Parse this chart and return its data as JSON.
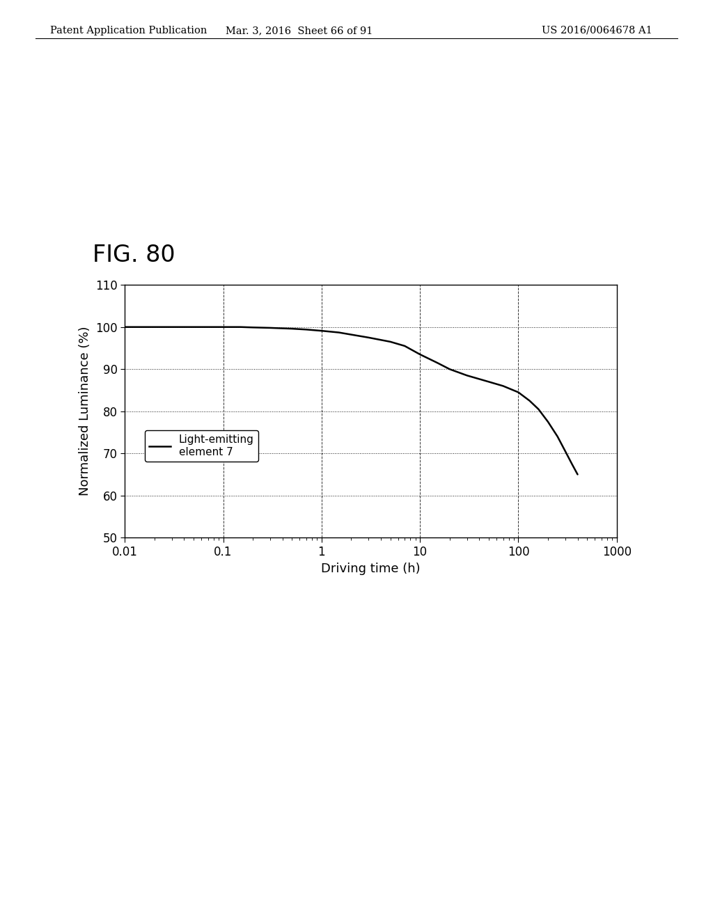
{
  "title_fig": "FIG. 80",
  "xlabel": "Driving time (h)",
  "ylabel": "Normalized Luminance (%)",
  "header_left": "Patent Application Publication",
  "header_mid": "Mar. 3, 2016  Sheet 66 of 91",
  "header_right": "US 2016/0064678 A1",
  "legend_label": "Light-emitting\nelement 7",
  "ylim": [
    50,
    110
  ],
  "yticks": [
    50,
    60,
    70,
    80,
    90,
    100,
    110
  ],
  "xtick_labels": [
    "0.01",
    "0.1",
    "1",
    "10",
    "100",
    "1000"
  ],
  "xtick_values": [
    0.01,
    0.1,
    1,
    10,
    100,
    1000
  ],
  "curve_x": [
    0.01,
    0.015,
    0.02,
    0.03,
    0.05,
    0.07,
    0.1,
    0.15,
    0.2,
    0.3,
    0.5,
    0.7,
    1.0,
    1.5,
    2.0,
    3.0,
    5.0,
    7.0,
    10.0,
    15.0,
    20.0,
    30.0,
    50.0,
    70.0,
    100.0,
    130.0,
    160.0,
    200.0,
    250.0,
    300.0,
    350.0,
    400.0
  ],
  "curve_y": [
    100.0,
    100.0,
    100.0,
    100.0,
    100.0,
    100.0,
    100.0,
    100.0,
    99.9,
    99.8,
    99.6,
    99.4,
    99.1,
    98.7,
    98.2,
    97.5,
    96.5,
    95.5,
    93.5,
    91.5,
    90.0,
    88.5,
    87.0,
    86.0,
    84.5,
    82.5,
    80.5,
    77.5,
    74.0,
    70.5,
    67.5,
    65.0
  ],
  "line_color": "#000000",
  "bg_color": "#ffffff",
  "fig_label_fontsize": 24,
  "axis_label_fontsize": 13,
  "tick_fontsize": 12,
  "legend_fontsize": 11,
  "header_fontsize": 10.5
}
